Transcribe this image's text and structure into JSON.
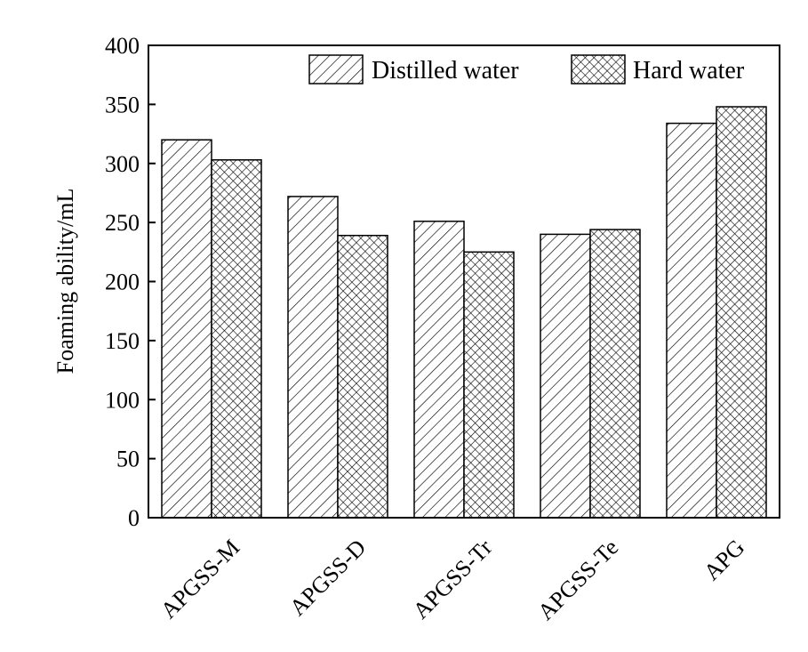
{
  "chart_data": {
    "type": "bar",
    "title": "",
    "xlabel": "",
    "ylabel": "Foaming ability/mL",
    "ylim": [
      0,
      400
    ],
    "yticks": [
      0,
      50,
      100,
      150,
      200,
      250,
      300,
      350,
      400
    ],
    "categories": [
      "APGSS-M",
      "APGSS-D",
      "APGSS-Tr",
      "APGSS-Te",
      "APG"
    ],
    "series": [
      {
        "name": "Distilled water",
        "values": [
          320,
          272,
          251,
          240,
          334
        ],
        "pattern": "diagonal-hatch"
      },
      {
        "name": "Hard water",
        "values": [
          303,
          239,
          225,
          244,
          348
        ],
        "pattern": "crosshatch"
      }
    ],
    "legend_position": "top-right",
    "grid": false,
    "colors": {
      "stroke": "#000000",
      "background": "#ffffff"
    }
  }
}
